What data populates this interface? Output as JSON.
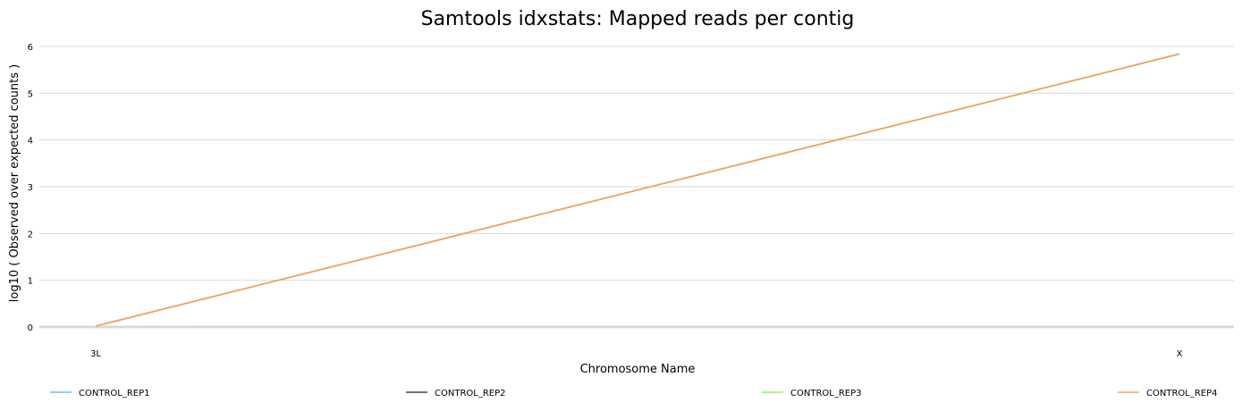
{
  "chart_data": {
    "type": "line",
    "title": "Samtools idxstats: Mapped reads per contig",
    "xlabel": "Chromosome Name",
    "ylabel": "log10 ( Observed over expected counts )",
    "categories": [
      "3L",
      "X"
    ],
    "ylim": [
      0,
      6
    ],
    "yticks": [
      "0",
      "1",
      "2",
      "3",
      "4",
      "5",
      "6"
    ],
    "grid": true,
    "legend_position": "bottom",
    "series": [
      {
        "name": "CONTROL_REP1",
        "values": [
          0.02,
          5.84
        ],
        "color": "#7cb5ec"
      },
      {
        "name": "CONTROL_REP2",
        "values": [
          0.02,
          5.84
        ],
        "color": "#434348"
      },
      {
        "name": "CONTROL_REP3",
        "values": [
          0.02,
          5.84
        ],
        "color": "#90ed7d"
      },
      {
        "name": "CONTROL_REP4",
        "values": [
          0.02,
          5.84
        ],
        "color": "#f7a35c"
      }
    ]
  }
}
